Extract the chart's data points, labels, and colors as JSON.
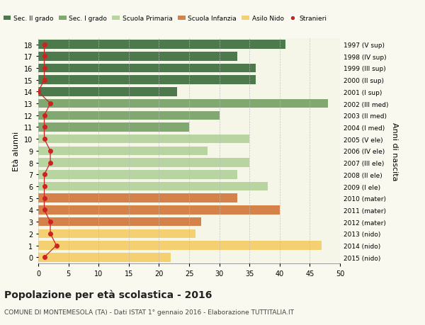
{
  "ages": [
    18,
    17,
    16,
    15,
    14,
    13,
    12,
    11,
    10,
    9,
    8,
    7,
    6,
    5,
    4,
    3,
    2,
    1,
    0
  ],
  "right_labels_by_age": {
    "18": "1997 (V sup)",
    "17": "1998 (IV sup)",
    "16": "1999 (III sup)",
    "15": "2000 (II sup)",
    "14": "2001 (I sup)",
    "13": "2002 (III med)",
    "12": "2003 (II med)",
    "11": "2004 (I med)",
    "10": "2005 (V ele)",
    "9": "2006 (IV ele)",
    "8": "2007 (III ele)",
    "7": "2008 (II ele)",
    "6": "2009 (I ele)",
    "5": "2010 (mater)",
    "4": "2011 (mater)",
    "3": "2012 (mater)",
    "2": "2013 (nido)",
    "1": "2014 (nido)",
    "0": "2015 (nido)"
  },
  "bar_values_by_age": {
    "18": 41,
    "17": 33,
    "16": 36,
    "15": 36,
    "14": 23,
    "13": 48,
    "12": 30,
    "11": 25,
    "10": 35,
    "9": 28,
    "8": 35,
    "7": 33,
    "6": 38,
    "5": 33,
    "4": 40,
    "3": 27,
    "2": 26,
    "1": 47,
    "0": 22
  },
  "bar_colors_by_age": {
    "18": "#4d7a4d",
    "17": "#4d7a4d",
    "16": "#4d7a4d",
    "15": "#4d7a4d",
    "14": "#4d7a4d",
    "13": "#80a870",
    "12": "#80a870",
    "11": "#80a870",
    "10": "#b8d4a0",
    "9": "#b8d4a0",
    "8": "#b8d4a0",
    "7": "#b8d4a0",
    "6": "#b8d4a0",
    "5": "#d4824a",
    "4": "#d4824a",
    "3": "#d4824a",
    "2": "#f5d070",
    "1": "#f5d070",
    "0": "#f5d070"
  },
  "stranieri_x_by_age": {
    "18": 1,
    "17": 1,
    "16": 1,
    "15": 1,
    "14": 0,
    "13": 2,
    "12": 1,
    "11": 1,
    "10": 1,
    "9": 2,
    "8": 2,
    "7": 1,
    "6": 1,
    "5": 1,
    "4": 1,
    "3": 2,
    "2": 2,
    "1": 3,
    "0": 1
  },
  "legend_labels": [
    "Sec. II grado",
    "Sec. I grado",
    "Scuola Primaria",
    "Scuola Infanzia",
    "Asilo Nido",
    "Stranieri"
  ],
  "legend_colors": [
    "#4d7a4d",
    "#80a870",
    "#b8d4a0",
    "#d4824a",
    "#f5d070",
    "#cc2222"
  ],
  "title": "Popolazione per età scolastica - 2016",
  "subtitle": "COMUNE DI MONTEMESOLA (TA) - Dati ISTAT 1° gennaio 2016 - Elaborazione TUTTITALIA.IT",
  "ylabel_left": "Età alunni",
  "ylabel_right": "Anni di nascita",
  "xlim": [
    0,
    50
  ],
  "xticks": [
    0,
    5,
    10,
    15,
    20,
    25,
    30,
    35,
    40,
    45,
    50
  ],
  "bar_height": 0.75,
  "bg_color": "#f9f9f0",
  "plot_bg": "#f5f5e8"
}
